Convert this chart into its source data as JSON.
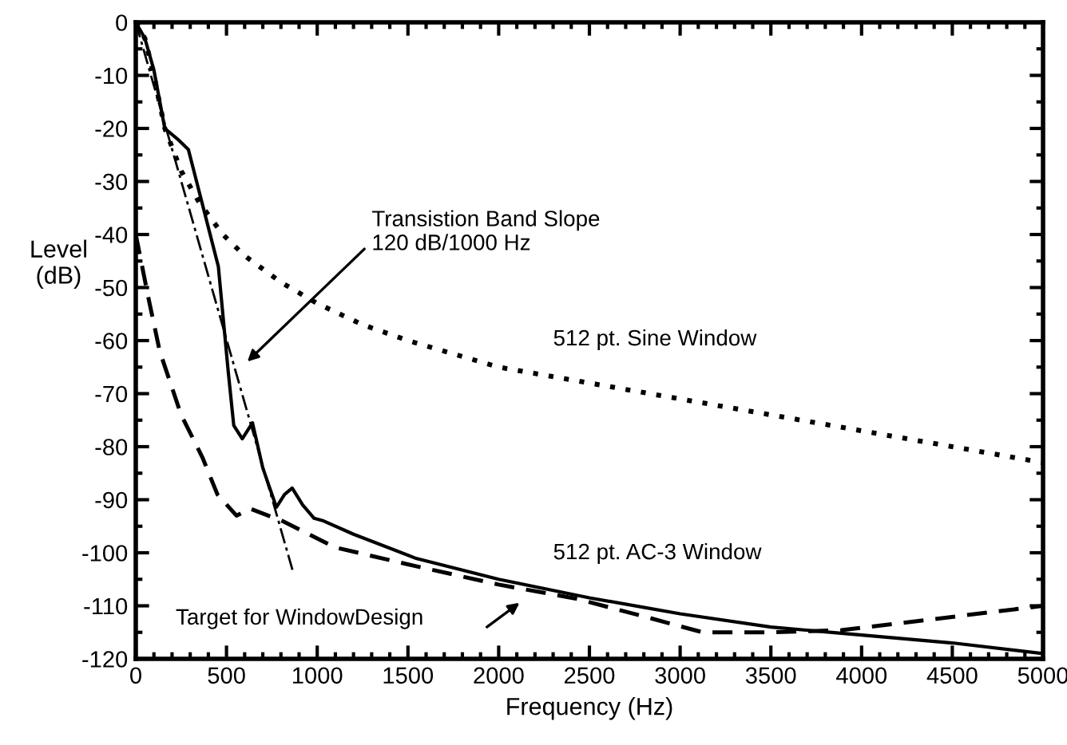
{
  "chart_data": {
    "type": "line",
    "xlabel": "Frequency (Hz)",
    "ylabel": "Level\n(dB)",
    "xlim": [
      0,
      5000
    ],
    "ylim": [
      -120,
      0
    ],
    "xticks": [
      0,
      500,
      1000,
      1500,
      2000,
      2500,
      3000,
      3500,
      4000,
      4500,
      5000
    ],
    "yticks": [
      0,
      -10,
      -20,
      -30,
      -40,
      -50,
      -60,
      -70,
      -80,
      -90,
      -100,
      -110,
      -120
    ],
    "grid": false,
    "legend": false,
    "marker": "none",
    "series": [
      {
        "name": "512 pt. Sine Window",
        "color": "#000000",
        "line_style": "dotted",
        "x": [
          0,
          50,
          100,
          160,
          250,
          350,
          480,
          600,
          800,
          1000,
          1250,
          1500,
          2000,
          2500,
          3000,
          3500,
          4000,
          4500,
          5000
        ],
        "values": [
          0,
          -3,
          -10,
          -20,
          -28,
          -34,
          -40,
          -44,
          -49,
          -53,
          -57,
          -60,
          -65,
          -68,
          -71,
          -74,
          -77,
          -80,
          -83
        ]
      },
      {
        "name": "512 pt. AC-3 Window",
        "color": "#000000",
        "line_style": "solid",
        "x": [
          0,
          50,
          100,
          160,
          230,
          290,
          350,
          455,
          510,
          540,
          587,
          643,
          700,
          775,
          820,
          862,
          920,
          983,
          1035,
          1200,
          1540,
          2000,
          2500,
          3000,
          3500,
          4000,
          4500,
          5000
        ],
        "values": [
          0,
          -3,
          -9,
          -20,
          -22,
          -24,
          -32,
          -46,
          -66,
          -76,
          -78.5,
          -75.5,
          -84,
          -91.4,
          -89,
          -87.8,
          -91,
          -93.5,
          -94,
          -96.5,
          -101,
          -105,
          -108.5,
          -111.5,
          -114,
          -115.5,
          -117,
          -119
        ]
      },
      {
        "color": "#000000",
        "line_style": "dashed",
        "x": [
          0,
          70,
          132,
          250,
          367,
          450,
          555,
          631,
          807,
          1100,
          1540,
          2000,
          2420,
          2800,
          3125,
          3500,
          3888,
          4400,
          5000
        ],
        "values": [
          -40,
          -52,
          -62,
          -74,
          -82,
          -89,
          -93,
          -91.7,
          -94,
          -99,
          -102.5,
          -106,
          -108.6,
          -112,
          -115,
          -115,
          -114.6,
          -112.5,
          -110
        ]
      },
      {
        "color": "#000000",
        "line_style": "dashdot",
        "x": [
          0,
          870
        ],
        "values": [
          0,
          -104
        ]
      }
    ],
    "annotations": [
      "Transistion Band Slope\n120 dB/1000 Hz",
      "Target for WindowDesign"
    ]
  }
}
